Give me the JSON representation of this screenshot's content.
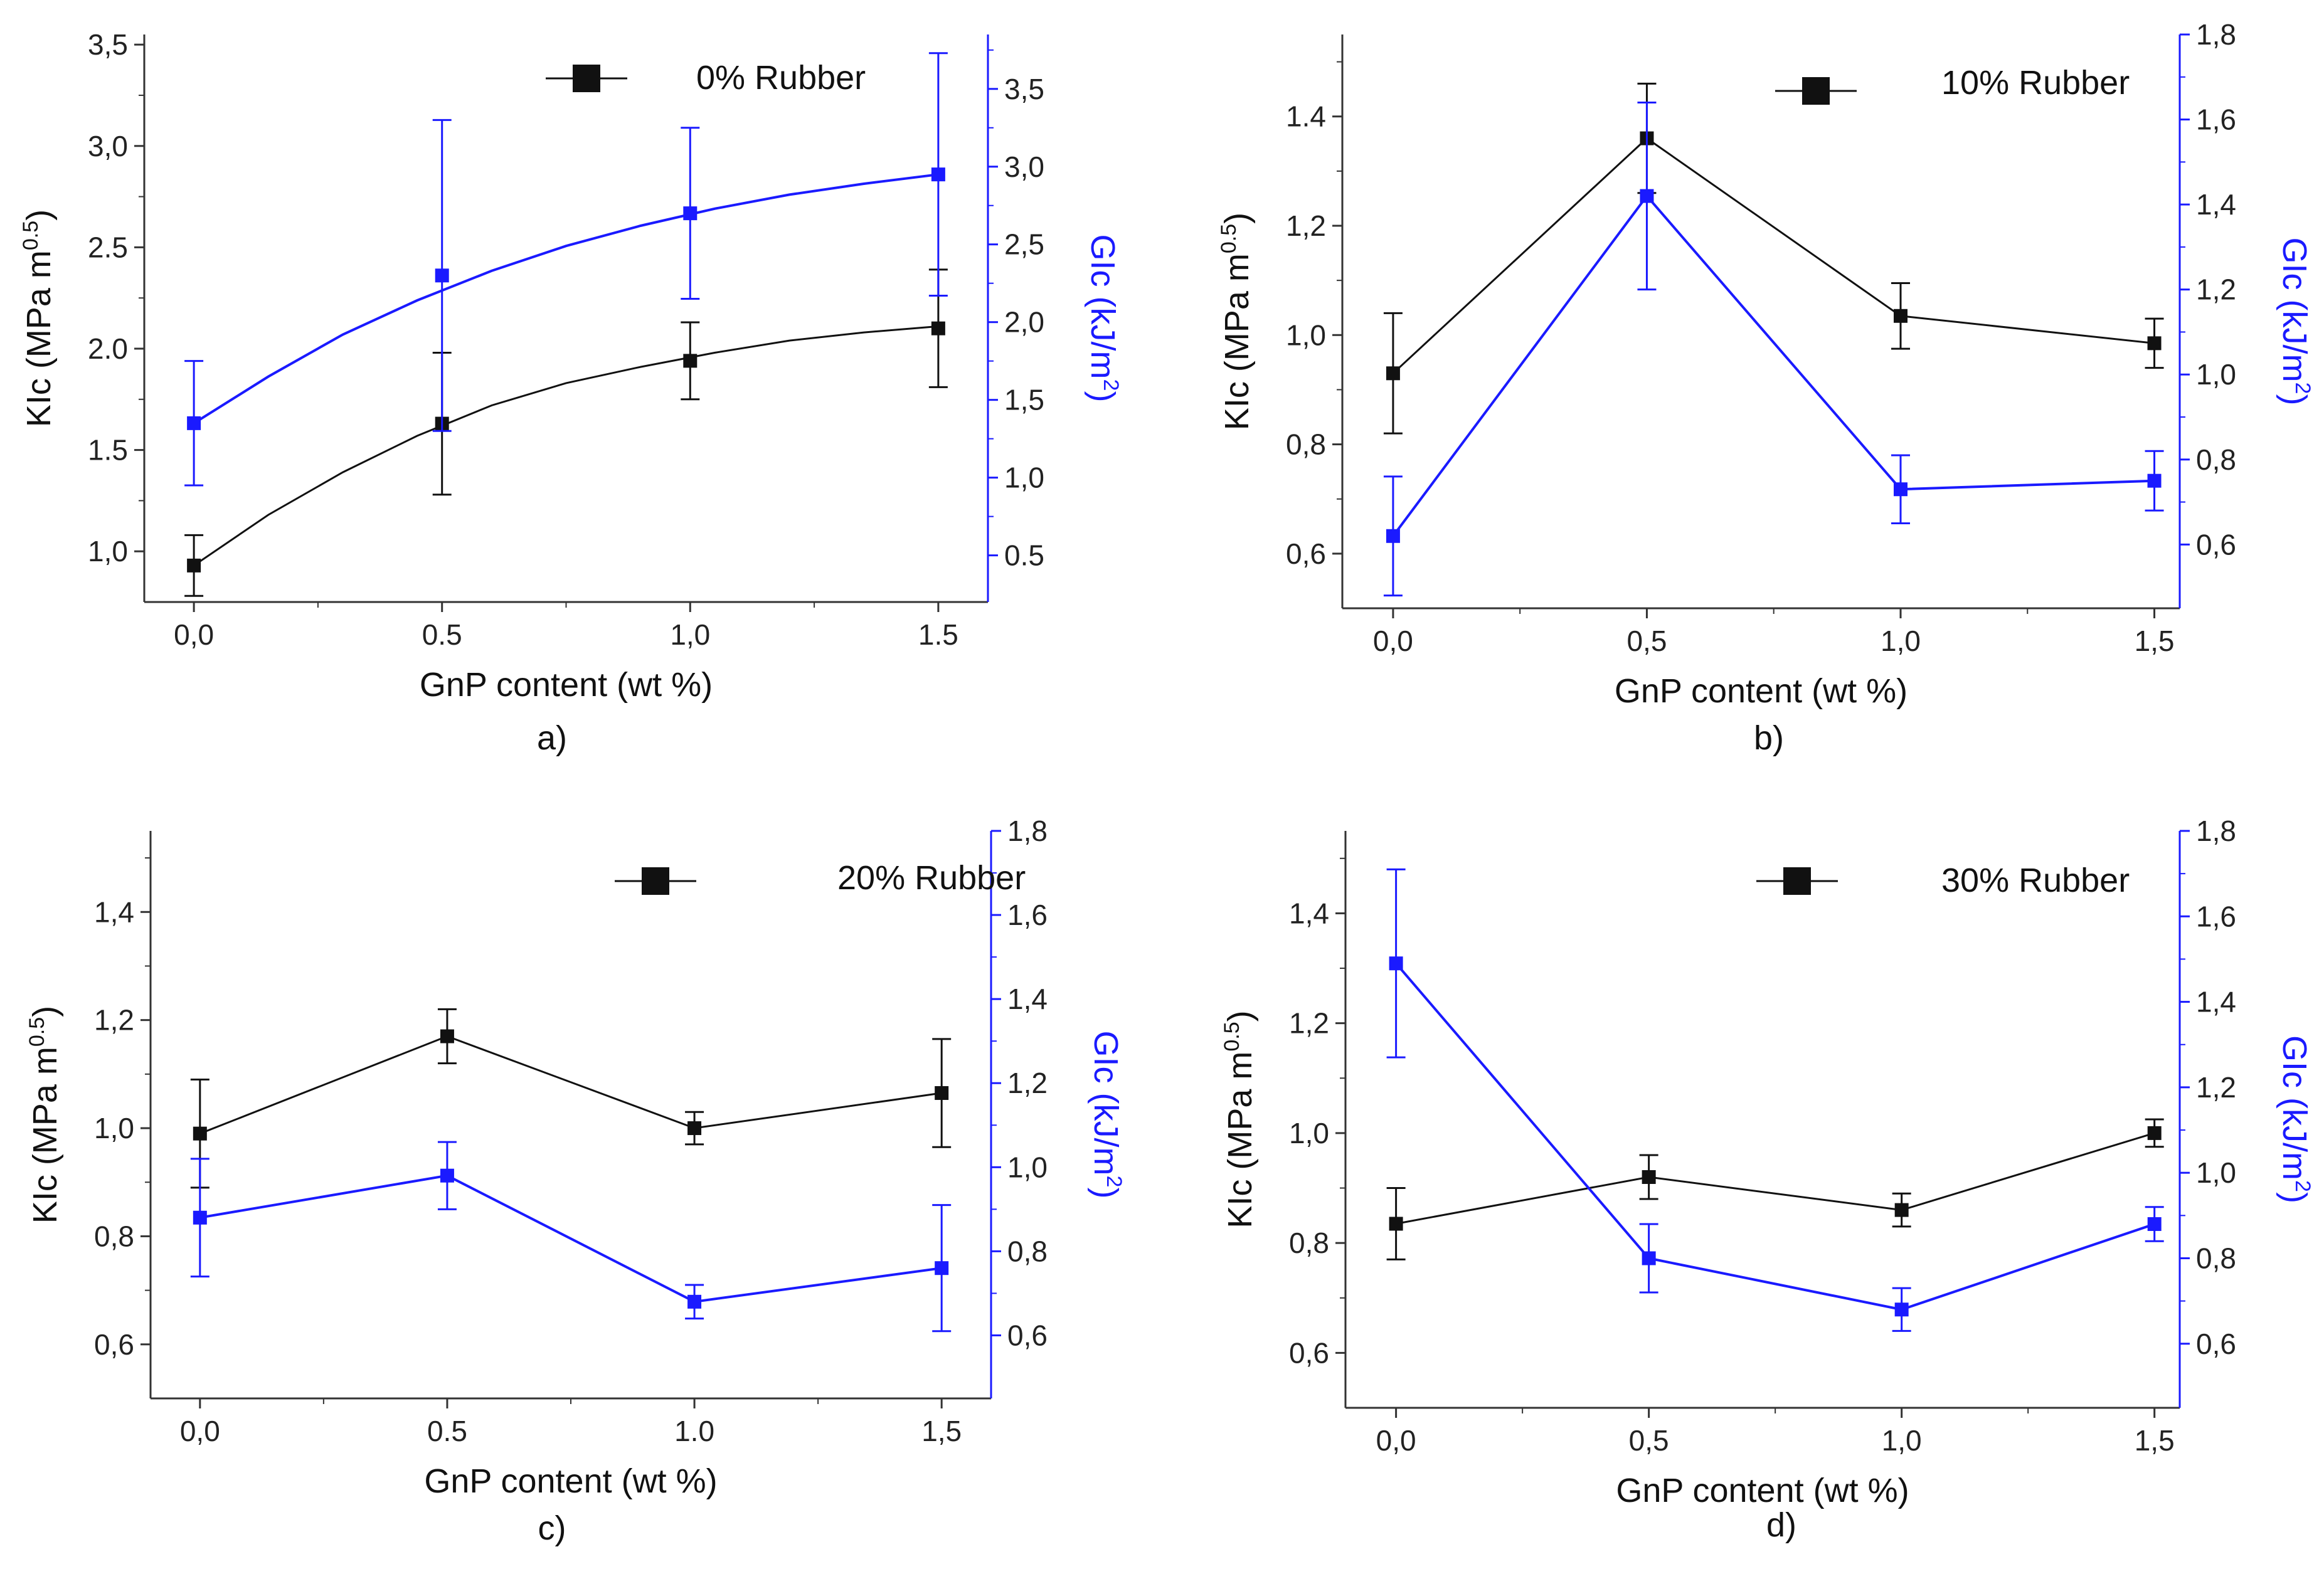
{
  "figure": {
    "colors": {
      "klc": "#111111",
      "glc": "#1a1aff",
      "axis": "#333333"
    }
  },
  "chart_data": [
    {
      "type": "line",
      "panel_label": "a)",
      "legend": "0% Rubber",
      "xlabel": "GnP content (wt %)",
      "ylabel_left": "KIc (MPa m^0.5)",
      "ylabel_left_main": "KIc (MPa m",
      "ylabel_left_exp": "0.5",
      "ylabel_left_end": ")",
      "ylabel_right": "GIc (kJ/m^2)",
      "ylabel_right_main": "GIc (kJ/m",
      "ylabel_right_exp": "2",
      "ylabel_right_end": ")",
      "xlim": [
        -0.1,
        1.6
      ],
      "xticks": [
        0.0,
        0.5,
        1.0,
        1.5
      ],
      "xticklabels": [
        "0,0",
        "0.5",
        "1,0",
        "1.5"
      ],
      "ylim_left": [
        0.75,
        3.55
      ],
      "yticks_left": [
        1.0,
        1.5,
        2.0,
        2.5,
        3.0,
        3.5
      ],
      "yticklabels_left": [
        "1,0",
        "1.5",
        "2.0",
        "2.5",
        "3,0",
        "3,5"
      ],
      "ylim_right": [
        0.2,
        3.85
      ],
      "yticks_right": [
        0.5,
        1.0,
        1.5,
        2.0,
        2.5,
        3.0,
        3.5
      ],
      "yticklabels_right": [
        "0.5",
        "1,0",
        "1,5",
        "2,0",
        "2,5",
        "3,0",
        "3,5"
      ],
      "smooth": true,
      "series": [
        {
          "name": "KIc",
          "axis": "left",
          "x": [
            0.0,
            0.5,
            1.0,
            1.5
          ],
          "values": [
            0.93,
            1.63,
            1.94,
            2.1
          ],
          "errors": [
            0.15,
            0.35,
            0.19,
            0.29
          ],
          "fit": [
            0.93,
            1.18,
            1.39,
            1.57,
            1.72,
            1.83,
            1.91,
            1.98,
            2.04,
            2.08,
            2.11
          ]
        },
        {
          "name": "GIc",
          "axis": "right",
          "x": [
            0.0,
            0.5,
            1.0,
            1.5
          ],
          "values": [
            1.35,
            2.3,
            2.7,
            2.95
          ],
          "errors": [
            0.4,
            1.0,
            0.55,
            0.78
          ],
          "fit": [
            1.35,
            1.65,
            1.92,
            2.14,
            2.33,
            2.49,
            2.62,
            2.73,
            2.82,
            2.89,
            2.95
          ]
        }
      ]
    },
    {
      "type": "line",
      "panel_label": "b)",
      "legend": "10% Rubber",
      "xlabel": "GnP content (wt %)",
      "ylabel_left": "KIc (MPa m^0.5)",
      "ylabel_left_main": "KIc (MPa m",
      "ylabel_left_exp": "0.5",
      "ylabel_left_end": ")",
      "ylabel_right": "GIc (kJ/m^2)",
      "ylabel_right_main": "GIc (kJ/m",
      "ylabel_right_exp": "2",
      "ylabel_right_end": ")",
      "xlim": [
        -0.1,
        1.55
      ],
      "xticks": [
        0.0,
        0.5,
        1.0,
        1.5
      ],
      "xticklabels": [
        "0,0",
        "0,5",
        "1,0",
        "1,5"
      ],
      "ylim_left": [
        0.5,
        1.55
      ],
      "yticks_left": [
        0.6,
        0.8,
        1.0,
        1.2,
        1.4
      ],
      "yticklabels_left": [
        "0,6",
        "0,8",
        "1,0",
        "1,2",
        "1.4"
      ],
      "ylim_right": [
        0.45,
        1.8
      ],
      "yticks_right": [
        0.6,
        0.8,
        1.0,
        1.2,
        1.4,
        1.6,
        1.8
      ],
      "yticklabels_right": [
        "0,6",
        "0,8",
        "1,0",
        "1,2",
        "1,4",
        "1,6",
        "1,8"
      ],
      "smooth": false,
      "series": [
        {
          "name": "KIc",
          "axis": "left",
          "x": [
            0.0,
            0.5,
            1.0,
            1.5
          ],
          "values": [
            0.93,
            1.36,
            1.035,
            0.985
          ],
          "errors": [
            0.11,
            0.1,
            0.06,
            0.045
          ]
        },
        {
          "name": "GIc",
          "axis": "right",
          "x": [
            0.0,
            0.5,
            1.0,
            1.5
          ],
          "values": [
            0.62,
            1.42,
            0.73,
            0.75
          ],
          "errors": [
            0.14,
            0.22,
            0.08,
            0.07
          ]
        }
      ]
    },
    {
      "type": "line",
      "panel_label": "c)",
      "legend": "20% Rubber",
      "xlabel": "GnP content (wt %)",
      "ylabel_left": "KIc (MPa m^0.5)",
      "ylabel_left_main": "KIc (MPa m",
      "ylabel_left_exp": "0.5",
      "ylabel_left_end": ")",
      "ylabel_right": "GIc (kJ/m^2)",
      "ylabel_right_main": "GIc (kJ/m",
      "ylabel_right_exp": "2",
      "ylabel_right_end": ")",
      "xlim": [
        -0.1,
        1.6
      ],
      "xticks": [
        0.0,
        0.5,
        1.0,
        1.5
      ],
      "xticklabels": [
        "0,0",
        "0.5",
        "1.0",
        "1,5"
      ],
      "ylim_left": [
        0.5,
        1.55
      ],
      "yticks_left": [
        0.6,
        0.8,
        1.0,
        1.2,
        1.4
      ],
      "yticklabels_left": [
        "0,6",
        "0,8",
        "1,0",
        "1,2",
        "1,4"
      ],
      "ylim_right": [
        0.45,
        1.8
      ],
      "yticks_right": [
        0.6,
        0.8,
        1.0,
        1.2,
        1.4,
        1.6,
        1.8
      ],
      "yticklabels_right": [
        "0,6",
        "0,8",
        "1,0",
        "1,2",
        "1,4",
        "1,6",
        "1,8"
      ],
      "smooth": false,
      "series": [
        {
          "name": "KIc",
          "axis": "left",
          "x": [
            0.0,
            0.5,
            1.0,
            1.5
          ],
          "values": [
            0.99,
            1.17,
            1.0,
            1.065
          ],
          "errors": [
            0.1,
            0.05,
            0.03,
            0.1
          ]
        },
        {
          "name": "GIc",
          "axis": "right",
          "x": [
            0.0,
            0.5,
            1.0,
            1.5
          ],
          "values": [
            0.88,
            0.98,
            0.68,
            0.76
          ],
          "errors": [
            0.14,
            0.08,
            0.04,
            0.15
          ]
        }
      ]
    },
    {
      "type": "line",
      "panel_label": "d)",
      "legend": "30% Rubber",
      "xlabel": "GnP content (wt %)",
      "ylabel_left": "KIc (MPa m^0.5)",
      "ylabel_left_main": "KIc (MPa m",
      "ylabel_left_exp": "0.5",
      "ylabel_left_end": ")",
      "ylabel_right": "GIc (kJ/m^2)",
      "ylabel_right_main": "GIc (kJ/m",
      "ylabel_right_exp": "2",
      "ylabel_right_end": ")",
      "xlim": [
        -0.1,
        1.55
      ],
      "xticks": [
        0.0,
        0.5,
        1.0,
        1.5
      ],
      "xticklabels": [
        "0,0",
        "0,5",
        "1,0",
        "1,5"
      ],
      "ylim_left": [
        0.5,
        1.55
      ],
      "yticks_left": [
        0.6,
        0.8,
        1.0,
        1.2,
        1.4
      ],
      "yticklabels_left": [
        "0,6",
        "0,8",
        "1,0",
        "1,2",
        "1,4"
      ],
      "ylim_right": [
        0.45,
        1.8
      ],
      "yticks_right": [
        0.6,
        0.8,
        1.0,
        1.2,
        1.4,
        1.6,
        1.8
      ],
      "yticklabels_right": [
        "0,6",
        "0,8",
        "1,0",
        "1,2",
        "1,4",
        "1,6",
        "1,8"
      ],
      "smooth": false,
      "series": [
        {
          "name": "KIc",
          "axis": "left",
          "x": [
            0.0,
            0.5,
            1.0,
            1.5
          ],
          "values": [
            0.835,
            0.92,
            0.86,
            1.0
          ],
          "errors": [
            0.065,
            0.04,
            0.03,
            0.025
          ]
        },
        {
          "name": "GIc",
          "axis": "right",
          "x": [
            0.0,
            0.5,
            1.0,
            1.5
          ],
          "values": [
            1.49,
            0.8,
            0.68,
            0.88
          ],
          "errors": [
            0.22,
            0.08,
            0.05,
            0.04
          ]
        }
      ]
    }
  ]
}
